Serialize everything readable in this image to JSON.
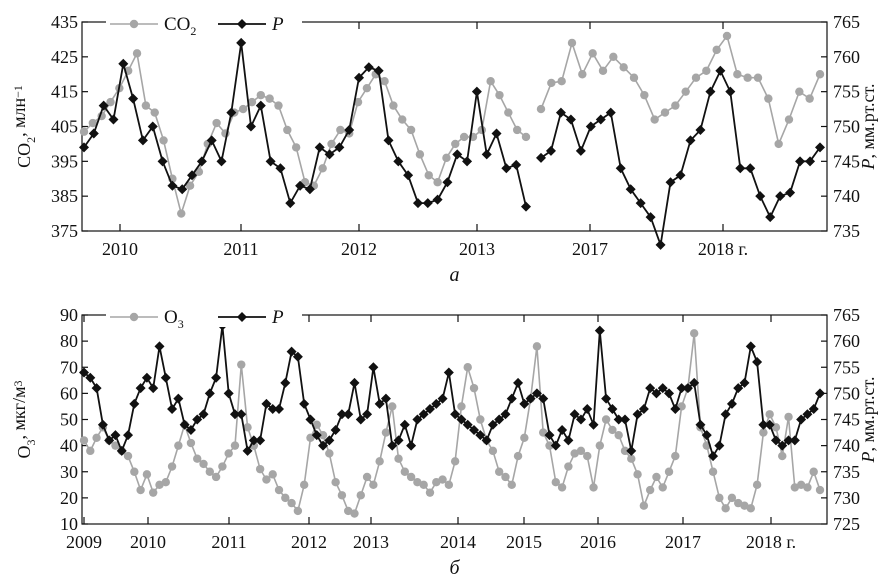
{
  "chart_data": [
    {
      "type": "line",
      "panel_label": "a",
      "xlabel": "",
      "x_ticks": [
        "2010",
        "2011",
        "2012",
        "2013",
        "2017",
        "2018 г."
      ],
      "left_axis": {
        "label_main": "CO",
        "label_sub": "2",
        "label_unit": ", млн",
        "label_sup": "−1",
        "ylim": [
          375,
          435
        ],
        "ticks": [
          375,
          385,
          395,
          405,
          415,
          425,
          435
        ]
      },
      "right_axis": {
        "label_main": "P",
        "label_unit": ", мм.рт.ст.",
        "ylim": [
          735,
          765
        ],
        "ticks": [
          735,
          740,
          745,
          750,
          755,
          760,
          765
        ]
      },
      "legend": {
        "placement": "top-left",
        "co2": {
          "main": "CO",
          "sub": "2"
        },
        "p": "P"
      },
      "series": [
        {
          "key": "CO2",
          "color": "#a6a6a6",
          "axis": "left",
          "segments": [
            [
              403.5,
              406,
              408,
              412,
              416,
              421,
              426,
              411,
              409,
              401,
              390,
              380,
              388,
              392,
              400,
              406,
              403,
              409,
              410,
              412,
              414,
              413,
              411,
              404,
              399,
              389,
              388,
              393,
              400,
              404,
              403,
              412,
              416,
              420,
              418,
              411,
              407,
              404,
              397,
              391,
              389,
              396,
              400,
              402,
              402,
              404,
              418,
              414,
              409,
              404,
              402
            ],
            [
              410,
              417.5,
              418,
              429,
              420,
              426,
              421,
              425,
              422,
              419,
              414,
              407,
              409,
              411,
              415,
              419,
              421,
              427,
              431,
              420,
              419,
              419,
              413,
              400,
              407,
              415,
              413,
              420
            ]
          ]
        },
        {
          "key": "P",
          "color": "#111111",
          "axis": "right",
          "segments": [
            [
              747,
              749,
              753,
              751,
              759,
              754,
              748,
              750,
              745,
              741.5,
              741,
              743,
              745,
              748,
              745,
              752,
              762,
              750,
              753,
              745,
              744,
              739,
              741.5,
              741,
              747,
              746,
              747,
              749.5,
              757,
              758.5,
              758,
              748,
              745,
              743,
              739,
              739,
              739.5,
              742,
              746,
              745,
              755,
              746,
              749,
              744,
              744.5,
              738.5
            ],
            [
              745.5,
              746.5,
              752,
              751,
              746.5,
              750,
              751,
              752,
              744,
              741,
              739,
              737,
              733,
              742,
              743,
              748,
              749.5,
              755,
              758,
              755,
              744,
              744,
              740,
              737,
              740,
              740.5,
              745,
              745,
              747
            ]
          ]
        }
      ]
    },
    {
      "type": "line",
      "panel_label": "б",
      "xlabel": "",
      "x_ticks": [
        "2009",
        "2010",
        "2011",
        "2012",
        "2013",
        "2014",
        "2015",
        "2016",
        "2017",
        "2018 г."
      ],
      "left_axis": {
        "label_main": "O",
        "label_sub": "3",
        "label_unit": ", мкг/м",
        "label_sup": "3",
        "ylim": [
          10,
          90
        ],
        "ticks": [
          10,
          20,
          30,
          40,
          50,
          60,
          70,
          80,
          90
        ]
      },
      "right_axis": {
        "label_main": "P",
        "label_unit": ", мм.рт.ст.",
        "ylim": [
          725,
          765
        ],
        "ticks": [
          725,
          730,
          735,
          740,
          745,
          750,
          755,
          760,
          765
        ]
      },
      "legend": {
        "placement": "top-left",
        "o3": {
          "main": "O",
          "sub": "3"
        },
        "p": "P"
      },
      "series": [
        {
          "key": "O3",
          "color": "#a6a6a6",
          "axis": "left",
          "segments": [
            [
              42,
              38,
              43,
              47,
              42,
              40,
              38,
              36,
              30,
              23,
              29,
              22,
              25,
              26,
              32,
              40,
              48,
              41,
              35,
              33,
              30,
              28,
              32,
              37,
              40,
              71,
              47,
              40,
              31,
              27,
              29,
              23,
              20,
              18,
              15,
              25,
              43,
              48,
              44,
              37,
              26,
              21,
              15,
              14,
              21,
              28,
              25,
              34,
              45,
              55,
              35,
              30,
              28,
              26,
              25,
              22,
              26,
              27,
              25,
              34,
              55,
              70,
              62,
              50,
              42,
              38,
              30,
              28,
              25,
              36,
              43,
              58,
              78,
              45,
              40,
              26,
              24,
              32,
              37,
              38,
              36,
              24,
              40,
              50,
              46,
              44,
              38,
              35,
              29,
              17,
              23,
              28,
              24,
              30,
              36,
              55,
              62,
              83,
              47,
              40,
              30,
              20,
              16,
              20,
              18,
              17,
              16,
              25,
              45,
              52,
              47,
              36,
              51,
              24,
              25,
              24,
              30,
              23
            ]
          ]
        },
        {
          "key": "P",
          "color": "#111111",
          "axis": "right",
          "segments": [
            [
              754,
              753,
              751,
              744,
              741,
              742,
              739,
              742,
              748,
              751,
              753,
              751,
              759,
              753,
              747,
              749,
              744,
              743,
              745,
              746,
              750,
              753,
              763,
              750,
              746,
              746,
              739,
              741,
              741,
              748,
              747,
              747,
              752,
              758,
              757,
              748,
              745,
              742,
              740,
              741,
              743,
              746,
              746,
              752,
              745,
              746,
              755,
              748,
              749,
              740,
              741,
              744,
              740,
              745,
              746,
              747,
              748,
              749,
              754,
              746,
              745,
              744,
              743,
              742,
              741,
              744,
              745,
              746,
              749,
              752,
              748,
              749,
              750,
              749,
              742,
              740,
              743,
              741,
              746,
              745,
              747,
              744,
              762,
              749,
              747,
              745,
              745,
              739,
              746,
              747,
              751,
              750,
              751,
              750,
              747,
              751,
              751,
              752,
              744,
              742,
              738,
              740,
              746,
              748,
              751,
              752,
              759,
              756,
              744,
              744,
              741,
              740,
              741,
              741,
              745,
              746,
              747,
              750
            ]
          ]
        }
      ]
    }
  ]
}
